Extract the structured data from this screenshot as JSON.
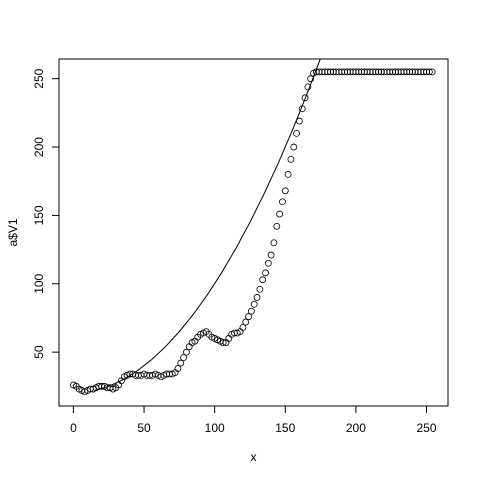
{
  "chart_data": {
    "type": "scatter",
    "xlabel": "x",
    "ylabel": "a$V1",
    "xlim": [
      -10.2,
      265.2
    ],
    "ylim": [
      10.6,
      264.4
    ],
    "xticks": [
      0,
      50,
      100,
      150,
      200,
      250
    ],
    "yticks": [
      50,
      100,
      150,
      200,
      250
    ],
    "color": "#000000",
    "points": {
      "x": [
        0,
        2,
        4,
        6,
        8,
        10,
        12,
        14,
        16,
        18,
        20,
        22,
        24,
        26,
        28,
        30,
        32,
        34,
        36,
        38,
        40,
        42,
        44,
        46,
        48,
        50,
        52,
        54,
        56,
        58,
        60,
        62,
        64,
        66,
        68,
        70,
        72,
        74,
        76,
        78,
        80,
        82,
        84,
        86,
        88,
        90,
        92,
        94,
        96,
        98,
        100,
        102,
        104,
        106,
        108,
        110,
        112,
        114,
        116,
        118,
        120,
        122,
        124,
        126,
        128,
        130,
        132,
        134,
        136,
        138,
        140,
        142,
        144,
        146,
        148,
        150,
        152,
        154,
        156,
        158,
        160,
        162,
        164,
        166,
        168,
        170,
        172,
        174,
        176,
        178,
        180,
        182,
        184,
        186,
        188,
        190,
        192,
        194,
        196,
        198,
        200,
        202,
        204,
        206,
        208,
        210,
        212,
        214,
        216,
        218,
        220,
        222,
        224,
        226,
        228,
        230,
        232,
        234,
        236,
        238,
        240,
        242,
        244,
        246,
        248,
        250,
        252,
        254
      ],
      "y": [
        26,
        25,
        23,
        22,
        21,
        22,
        23,
        23,
        24,
        25,
        25,
        25,
        24,
        24,
        23,
        24,
        26,
        29,
        32,
        33,
        34,
        34,
        33,
        33,
        33,
        34,
        33,
        33,
        33,
        34,
        33,
        32,
        33,
        34,
        34,
        34,
        35,
        38,
        42,
        46,
        50,
        54,
        57,
        58,
        61,
        63,
        64,
        65,
        63,
        61,
        60,
        59,
        58,
        57,
        57,
        60,
        63,
        64,
        64,
        65,
        68,
        72,
        76,
        80,
        85,
        90,
        96,
        103,
        108,
        115,
        121,
        130,
        142,
        151,
        160,
        168,
        180,
        191,
        200,
        210,
        219,
        228,
        236,
        244,
        250,
        254,
        255,
        255,
        255,
        255,
        255,
        255,
        255,
        255,
        255,
        255,
        255,
        255,
        255,
        255,
        255,
        255,
        255,
        255,
        255,
        255,
        255,
        255,
        255,
        255,
        255,
        255,
        255,
        255,
        255,
        255,
        255,
        255,
        255,
        255,
        255,
        255,
        255,
        255,
        255,
        255,
        255,
        255
      ]
    },
    "curve": {
      "x": [
        15,
        25,
        35,
        45,
        55,
        65,
        75,
        85,
        95,
        105,
        115,
        125,
        135,
        145,
        155,
        165,
        175
      ],
      "y": [
        21.8,
        25,
        29.8,
        36.2,
        44.2,
        53.8,
        65,
        77.8,
        92.2,
        108.2,
        125.8,
        145,
        165.8,
        188.2,
        212.2,
        237.8,
        265
      ]
    }
  }
}
